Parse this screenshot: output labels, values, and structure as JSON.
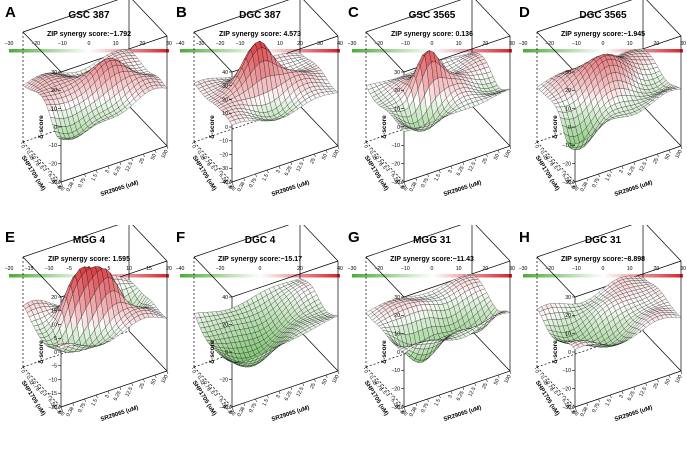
{
  "figure": {
    "panels": [
      {
        "letter": "A",
        "title": "GSC 387",
        "score_text": "ZIP synergy score:−1.792",
        "colorbar_ticks": [
          "−30",
          "−20",
          "−10",
          "0",
          "10",
          "20",
          "30"
        ],
        "z_ticks": [
          "30",
          "20",
          "10",
          "0",
          "−10",
          "−20",
          "−30"
        ]
      },
      {
        "letter": "B",
        "title": "DGC 387",
        "score_text": "ZIP synergy score: 4.573",
        "colorbar_ticks": [
          "−40",
          "−30",
          "−20",
          "−10",
          "0",
          "10",
          "20",
          "30",
          "40"
        ],
        "z_ticks": [
          "40",
          "30",
          "20",
          "10",
          "0",
          "−10",
          "−20",
          "−30",
          "−40"
        ]
      },
      {
        "letter": "C",
        "title": "GSC 3565",
        "score_text": "ZIP synergy score: 0.136",
        "colorbar_ticks": [
          "−30",
          "−20",
          "−10",
          "0",
          "10",
          "20",
          "30"
        ],
        "z_ticks": [
          "30",
          "20",
          "10",
          "0",
          "−10",
          "−20",
          "−30"
        ]
      },
      {
        "letter": "D",
        "title": "DGC 3565",
        "score_text": "ZIP synergy score:−1.945",
        "colorbar_ticks": [
          "−30",
          "−20",
          "−10",
          "0",
          "10",
          "20",
          "30"
        ],
        "z_ticks": [
          "30",
          "20",
          "10",
          "0",
          "−10",
          "−20",
          "−30"
        ]
      },
      {
        "letter": "E",
        "title": "MGG 4",
        "score_text": "ZIP synergy score: 1.595",
        "colorbar_ticks": [
          "−20",
          "−15",
          "−10",
          "−5",
          "0",
          "5",
          "10",
          "15",
          "20"
        ],
        "z_ticks": [
          "20",
          "15",
          "10",
          "5",
          "0",
          "−5",
          "−10",
          "−15",
          "−20"
        ]
      },
      {
        "letter": "F",
        "title": "DGC 4",
        "score_text": "ZIP synergy score:−15.17",
        "colorbar_ticks": [
          "−40",
          "−20",
          "0",
          "20",
          "40"
        ],
        "z_ticks": [
          "40",
          "20",
          "0",
          "−20",
          "−40"
        ]
      },
      {
        "letter": "G",
        "title": "MGG 31",
        "score_text": "ZIP synergy score:−11.43",
        "colorbar_ticks": [
          "−30",
          "−20",
          "−10",
          "0",
          "10",
          "20",
          "30"
        ],
        "z_ticks": [
          "30",
          "20",
          "10",
          "0",
          "−10",
          "−20",
          "−30"
        ]
      },
      {
        "letter": "H",
        "title": "DGC 31",
        "score_text": "ZIP synergy score:−8.898",
        "colorbar_ticks": [
          "−30",
          "−20",
          "−10",
          "0",
          "10",
          "20",
          "30"
        ],
        "z_ticks": [
          "30",
          "20",
          "10",
          "0",
          "−10",
          "−20",
          "−30"
        ]
      }
    ],
    "y_axis_label": "SHP1705 (uM)",
    "x_axis_label": "SR29065 (uM)",
    "z_axis_label": "δ-score",
    "y_ticks": [
      "0",
      "0.38",
      "0.75",
      "1.5",
      "3",
      "6.25",
      "12.5",
      "25"
    ],
    "y_ticks_alt": [
      "0",
      "0.32",
      "0.75",
      "1.5",
      "3",
      "6.25",
      "12.5",
      "25"
    ],
    "x_ticks": [
      "0",
      "0.38",
      "0.75",
      "1.5",
      "3",
      "6.25",
      "12.5",
      "25",
      "50",
      "100"
    ]
  },
  "colors": {
    "low": "#4dab3a",
    "mid": "#ffffff",
    "high": "#d3222a",
    "mesh": "#000000"
  },
  "chart_data": [
    {
      "type": "surface",
      "title": "GSC 387",
      "zip_score": -1.792,
      "colorbar_range": [
        -30,
        30
      ],
      "zlim": [
        -30,
        30
      ],
      "x_concentrations_uM": [
        0,
        0.38,
        0.75,
        1.5,
        3,
        6.25,
        12.5,
        25,
        50,
        100
      ],
      "y_concentrations_uM": [
        0,
        0.38,
        0.75,
        1.5,
        3,
        6.25,
        12.5,
        25
      ],
      "peaks": [
        {
          "cx": 0.65,
          "cy": 0.45,
          "amp": 14,
          "w": 0.15
        },
        {
          "cx": 0.2,
          "cy": 0.5,
          "amp": 8,
          "w": 0.25
        },
        {
          "cx": 0.15,
          "cy": 0.1,
          "amp": -15,
          "w": 0.15
        },
        {
          "cx": 0.5,
          "cy": 0.3,
          "amp": -6,
          "w": 0.18
        },
        {
          "cx": 0.85,
          "cy": 0.25,
          "amp": 5,
          "w": 0.12
        }
      ]
    },
    {
      "type": "surface",
      "title": "DGC 387",
      "zip_score": 4.573,
      "colorbar_range": [
        -40,
        40
      ],
      "zlim": [
        -40,
        40
      ],
      "x_concentrations_uM": [
        0,
        0.38,
        0.75,
        1.5,
        3,
        6.25,
        12.5,
        25,
        50,
        100
      ],
      "y_concentrations_uM": [
        0,
        0.38,
        0.75,
        1.5,
        3,
        6.25,
        12.5,
        25
      ],
      "peaks": [
        {
          "cx": 0.45,
          "cy": 0.55,
          "amp": 28,
          "w": 0.12
        },
        {
          "cx": 0.7,
          "cy": 0.4,
          "amp": 12,
          "w": 0.15
        },
        {
          "cx": 0.2,
          "cy": 0.5,
          "amp": 8,
          "w": 0.2
        },
        {
          "cx": 0.5,
          "cy": 0.2,
          "amp": -8,
          "w": 0.2
        }
      ]
    },
    {
      "type": "surface",
      "title": "GSC 3565",
      "zip_score": 0.136,
      "colorbar_range": [
        -30,
        30
      ],
      "zlim": [
        -30,
        30
      ],
      "x_concentrations_uM": [
        0,
        0.38,
        0.75,
        1.5,
        3,
        6.25,
        12.5,
        25,
        50,
        100
      ],
      "y_concentrations_uM": [
        0,
        0.38,
        0.75,
        1.5,
        3,
        6.25,
        12.5,
        25
      ],
      "peaks": [
        {
          "cx": 0.4,
          "cy": 0.5,
          "amp": 22,
          "w": 0.1
        },
        {
          "cx": 0.6,
          "cy": 0.5,
          "amp": 6,
          "w": 0.18
        },
        {
          "cx": 0.25,
          "cy": 0.25,
          "amp": -10,
          "w": 0.18
        },
        {
          "cx": 0.8,
          "cy": 0.3,
          "amp": -4,
          "w": 0.15
        }
      ]
    },
    {
      "type": "surface",
      "title": "DGC 3565",
      "zip_score": -1.945,
      "colorbar_range": [
        -30,
        30
      ],
      "zlim": [
        -30,
        30
      ],
      "x_concentrations_uM": [
        0,
        0.38,
        0.75,
        1.5,
        3,
        6.25,
        12.5,
        25,
        50,
        100
      ],
      "y_concentrations_uM": [
        0,
        0.38,
        0.75,
        1.5,
        3,
        6.25,
        12.5,
        25
      ],
      "peaks": [
        {
          "cx": 0.5,
          "cy": 0.65,
          "amp": 16,
          "w": 0.2
        },
        {
          "cx": 0.1,
          "cy": 0.15,
          "amp": -18,
          "w": 0.15
        },
        {
          "cx": 0.7,
          "cy": 0.3,
          "amp": -5,
          "w": 0.2
        }
      ]
    },
    {
      "type": "surface",
      "title": "MGG 4",
      "zip_score": 1.595,
      "colorbar_range": [
        -20,
        20
      ],
      "zlim": [
        -20,
        20
      ],
      "x_concentrations_uM": [
        0,
        0.38,
        0.75,
        1.5,
        3,
        6.25,
        12.5,
        25,
        50,
        100
      ],
      "y_concentrations_uM": [
        0,
        0.32,
        0.75,
        1.5,
        3,
        6.25,
        12.5,
        25
      ],
      "peaks": [
        {
          "cx": 0.35,
          "cy": 0.55,
          "amp": 14,
          "w": 0.12
        },
        {
          "cx": 0.6,
          "cy": 0.45,
          "amp": 16,
          "w": 0.12
        },
        {
          "cx": 0.2,
          "cy": 0.3,
          "amp": -8,
          "w": 0.15
        },
        {
          "cx": 0.8,
          "cy": 0.6,
          "amp": -6,
          "w": 0.15
        }
      ]
    },
    {
      "type": "surface",
      "title": "DGC 4",
      "zip_score": -15.17,
      "colorbar_range": [
        -40,
        40
      ],
      "zlim": [
        -40,
        40
      ],
      "x_concentrations_uM": [
        0,
        0.38,
        0.75,
        1.5,
        3,
        6.25,
        12.5,
        25,
        50,
        100
      ],
      "y_concentrations_uM": [
        0,
        0.32,
        0.75,
        1.5,
        3,
        6.25,
        12.5,
        25
      ],
      "peaks": [
        {
          "cx": 0.4,
          "cy": 0.5,
          "amp": -22,
          "w": 0.3
        },
        {
          "cx": 0.75,
          "cy": 0.7,
          "amp": 5,
          "w": 0.15
        },
        {
          "cx": 0.15,
          "cy": 0.2,
          "amp": -10,
          "w": 0.2
        }
      ]
    },
    {
      "type": "surface",
      "title": "MGG 31",
      "zip_score": -11.43,
      "colorbar_range": [
        -30,
        30
      ],
      "zlim": [
        -30,
        30
      ],
      "x_concentrations_uM": [
        0,
        0.38,
        0.75,
        1.5,
        3,
        6.25,
        12.5,
        25,
        50,
        100
      ],
      "y_concentrations_uM": [
        0,
        0.38,
        0.75,
        1.5,
        3,
        6.25,
        12.5,
        25
      ],
      "peaks": [
        {
          "cx": 0.3,
          "cy": 0.35,
          "amp": -16,
          "w": 0.15
        },
        {
          "cx": 0.6,
          "cy": 0.5,
          "amp": -14,
          "w": 0.15
        },
        {
          "cx": 0.5,
          "cy": 0.7,
          "amp": 6,
          "w": 0.15
        },
        {
          "cx": 0.8,
          "cy": 0.3,
          "amp": -8,
          "w": 0.12
        }
      ]
    },
    {
      "type": "surface",
      "title": "DGC 31",
      "zip_score": -8.898,
      "colorbar_range": [
        -30,
        30
      ],
      "zlim": [
        -30,
        30
      ],
      "x_concentrations_uM": [
        0,
        0.38,
        0.75,
        1.5,
        3,
        6.25,
        12.5,
        25,
        50,
        100
      ],
      "y_concentrations_uM": [
        0,
        0.38,
        0.75,
        1.5,
        3,
        6.25,
        12.5,
        25
      ],
      "peaks": [
        {
          "cx": 0.4,
          "cy": 0.4,
          "amp": -12,
          "w": 0.2
        },
        {
          "cx": 0.7,
          "cy": 0.6,
          "amp": 5,
          "w": 0.18
        },
        {
          "cx": 0.2,
          "cy": 0.7,
          "amp": -6,
          "w": 0.15
        }
      ]
    }
  ]
}
